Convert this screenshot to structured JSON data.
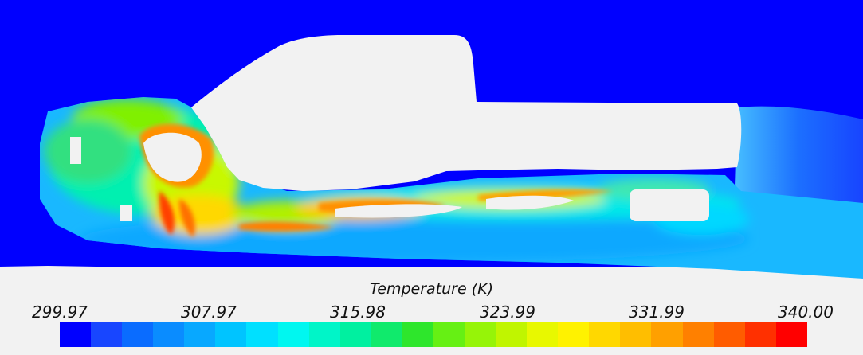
{
  "legend": {
    "title": "Temperature (K)",
    "ticks": [
      "299.97",
      "307.97",
      "315.98",
      "323.99",
      "331.99",
      "340.00"
    ],
    "min": 299.97,
    "max": 340.0,
    "colors": [
      "#0000ff",
      "#1846ff",
      "#0a6cff",
      "#0a8cff",
      "#08a8ff",
      "#00c4ff",
      "#00e0ff",
      "#00f7f0",
      "#00f5c8",
      "#00f0a0",
      "#10ea6c",
      "#2ee62c",
      "#66f014",
      "#96f408",
      "#c0f500",
      "#e8f800",
      "#fff200",
      "#ffd800",
      "#ffbe00",
      "#ffa000",
      "#ff8000",
      "#ff5c00",
      "#ff3000",
      "#ff0000"
    ]
  },
  "scene": {
    "background": "#0000ff",
    "floor_color": "#f2f2f2",
    "vehicle_color": "#f2f2f2"
  }
}
